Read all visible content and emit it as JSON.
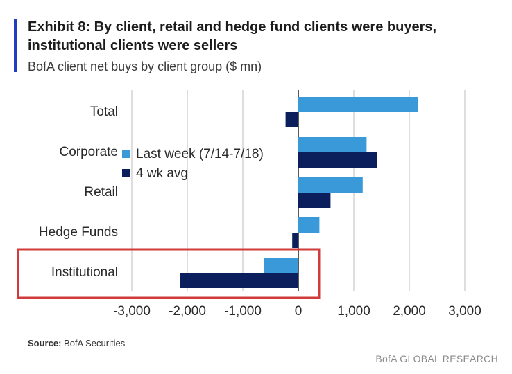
{
  "header": {
    "title": "Exhibit 8: By client, retail and hedge fund clients were buyers, institutional clients were sellers",
    "subtitle": "BofA client net buys by client group ($ mn)"
  },
  "footer": {
    "source_label": "Source:",
    "source_value": "BofA Securities",
    "brand": "BofA GLOBAL RESEARCH"
  },
  "highlight": {
    "category": "Institutional",
    "color": "#d23b3b"
  },
  "chart_data": {
    "type": "bar",
    "orientation": "horizontal",
    "categories": [
      "Total",
      "Corporate",
      "Retail",
      "Hedge Funds",
      "Institutional"
    ],
    "series": [
      {
        "name": "Last week (7/14-7/18)",
        "color": "#3a9ad9",
        "values": [
          2150,
          1230,
          1160,
          380,
          -620
        ]
      },
      {
        "name": "4 wk avg",
        "color": "#0b1f5c",
        "values": [
          -230,
          1420,
          580,
          -110,
          -2130
        ]
      }
    ],
    "xlim": [
      -3000,
      3000
    ],
    "xticks": [
      -3000,
      -2000,
      -1000,
      0,
      1000,
      2000,
      3000
    ],
    "xtick_labels": [
      "-3,000",
      "-2,000",
      "-1,000",
      "0",
      "1,000",
      "2,000",
      "3,000"
    ],
    "grid": true,
    "legend_position": "center-left"
  }
}
